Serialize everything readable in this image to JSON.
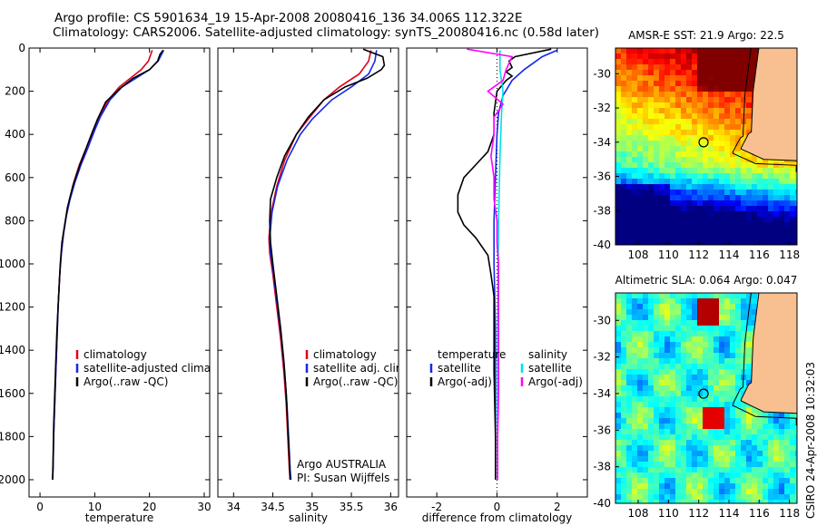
{
  "header": {
    "line1": "Argo profile: CS 5901634_19 15-Apr-2008 20080416_136 34.006S 112.322E",
    "line2": "Climatology: CARS2006. Satellite-adjusted climatology: synTS_20080416.nc (0.58d later)"
  },
  "footer_stamp": "CSIRO 24-Apr-2008 10:32:03",
  "colors": {
    "climatology": "#e0001c",
    "satellite": "#1428e6",
    "argo": "#000000",
    "sal_satellite": "#00e0e8",
    "sal_argo": "#ff00ff",
    "land": "#f8c090",
    "marker": "#000000"
  },
  "chart_data": [
    {
      "type": "line",
      "title": "",
      "xlabel": "temperature",
      "ylabel": "",
      "xlim": [
        -2,
        31
      ],
      "ylim": [
        2080,
        0
      ],
      "y_reversed": true,
      "xticks": [
        0,
        10,
        20,
        30
      ],
      "yticks": [
        0,
        200,
        400,
        600,
        800,
        1000,
        1200,
        1400,
        1600,
        1800,
        2000
      ],
      "legend": {
        "placement": "lower-center",
        "entries": [
          "climatology",
          "satellite-adjusted climatology",
          "Argo(..raw -QC)"
        ]
      },
      "series": [
        {
          "name": "climatology",
          "color": "#e0001c",
          "points": [
            [
              20.5,
              10
            ],
            [
              19.8,
              60
            ],
            [
              18.5,
              100
            ],
            [
              16.5,
              140
            ],
            [
              14.5,
              180
            ],
            [
              12.5,
              240
            ],
            [
              10.8,
              320
            ],
            [
              9.8,
              380
            ],
            [
              8.5,
              460
            ],
            [
              7.2,
              540
            ],
            [
              6.2,
              620
            ],
            [
              5.4,
              700
            ],
            [
              4.8,
              780
            ],
            [
              4.3,
              860
            ],
            [
              3.9,
              950
            ],
            [
              3.6,
              1050
            ],
            [
              3.3,
              1200
            ],
            [
              3.1,
              1350
            ],
            [
              2.9,
              1500
            ],
            [
              2.7,
              1650
            ],
            [
              2.5,
              1800
            ],
            [
              2.4,
              1950
            ],
            [
              2.3,
              2000
            ]
          ]
        },
        {
          "name": "satellite-adjusted climatology",
          "color": "#1428e6",
          "points": [
            [
              22.6,
              10
            ],
            [
              21.6,
              60
            ],
            [
              20.0,
              100
            ],
            [
              17.5,
              140
            ],
            [
              15.0,
              180
            ],
            [
              12.8,
              240
            ],
            [
              11.0,
              320
            ],
            [
              10.0,
              380
            ],
            [
              8.8,
              460
            ],
            [
              7.5,
              540
            ],
            [
              6.4,
              620
            ],
            [
              5.5,
              700
            ],
            [
              4.8,
              780
            ],
            [
              4.3,
              860
            ],
            [
              3.9,
              950
            ],
            [
              3.6,
              1050
            ],
            [
              3.3,
              1200
            ],
            [
              3.1,
              1350
            ],
            [
              2.9,
              1500
            ],
            [
              2.7,
              1650
            ],
            [
              2.5,
              1800
            ],
            [
              2.4,
              1950
            ],
            [
              2.3,
              2000
            ]
          ]
        },
        {
          "name": "Argo(..raw -QC)",
          "color": "#000000",
          "points": [
            [
              22.5,
              10
            ],
            [
              21.9,
              30
            ],
            [
              21.5,
              60
            ],
            [
              20.0,
              100
            ],
            [
              17.0,
              140
            ],
            [
              14.5,
              190
            ],
            [
              12.0,
              250
            ],
            [
              10.5,
              330
            ],
            [
              9.4,
              400
            ],
            [
              8.5,
              460
            ],
            [
              7.3,
              540
            ],
            [
              6.0,
              640
            ],
            [
              5.0,
              740
            ],
            [
              4.5,
              820
            ],
            [
              4.0,
              900
            ],
            [
              3.7,
              1000
            ],
            [
              3.4,
              1150
            ],
            [
              3.1,
              1300
            ],
            [
              2.9,
              1450
            ],
            [
              2.7,
              1600
            ],
            [
              2.5,
              1750
            ],
            [
              2.4,
              1900
            ],
            [
              2.3,
              2000
            ]
          ]
        }
      ]
    },
    {
      "type": "line",
      "title": "",
      "xlabel": "salinity",
      "ylabel": "",
      "xlim": [
        33.8,
        36.1
      ],
      "ylim": [
        2080,
        0
      ],
      "y_reversed": true,
      "xticks": [
        34,
        34.5,
        35,
        35.5,
        36
      ],
      "yticks": [],
      "legend": {
        "placement": "lower-center",
        "entries": [
          "climatology",
          "satellite adj. clim.",
          "Argo(..raw -QC)"
        ]
      },
      "annotation": [
        "Argo AUSTRALIA",
        "PI: Susan Wijffels"
      ],
      "series": [
        {
          "name": "climatology",
          "color": "#e0001c",
          "points": [
            [
              35.75,
              10
            ],
            [
              35.72,
              60
            ],
            [
              35.6,
              120
            ],
            [
              35.35,
              180
            ],
            [
              35.15,
              240
            ],
            [
              34.95,
              330
            ],
            [
              34.8,
              400
            ],
            [
              34.65,
              520
            ],
            [
              34.55,
              640
            ],
            [
              34.48,
              760
            ],
            [
              34.45,
              880
            ],
            [
              34.46,
              950
            ],
            [
              34.5,
              1050
            ],
            [
              34.55,
              1200
            ],
            [
              34.6,
              1350
            ],
            [
              34.64,
              1500
            ],
            [
              34.67,
              1650
            ],
            [
              34.69,
              1800
            ],
            [
              34.71,
              1950
            ],
            [
              34.72,
              2000
            ]
          ]
        },
        {
          "name": "satellite adj. clim.",
          "color": "#1428e6",
          "points": [
            [
              35.82,
              10
            ],
            [
              35.8,
              60
            ],
            [
              35.72,
              120
            ],
            [
              35.5,
              180
            ],
            [
              35.25,
              240
            ],
            [
              35.0,
              330
            ],
            [
              34.85,
              400
            ],
            [
              34.68,
              520
            ],
            [
              34.56,
              640
            ],
            [
              34.49,
              760
            ],
            [
              34.46,
              880
            ],
            [
              34.47,
              950
            ],
            [
              34.51,
              1050
            ],
            [
              34.56,
              1200
            ],
            [
              34.61,
              1350
            ],
            [
              34.65,
              1500
            ],
            [
              34.68,
              1650
            ],
            [
              34.7,
              1800
            ],
            [
              34.72,
              1950
            ],
            [
              34.73,
              2000
            ]
          ]
        },
        {
          "name": "Argo(..raw -QC)",
          "color": "#000000",
          "points": [
            [
              35.65,
              5
            ],
            [
              35.9,
              40
            ],
            [
              35.92,
              80
            ],
            [
              35.88,
              100
            ],
            [
              35.7,
              140
            ],
            [
              35.42,
              180
            ],
            [
              35.15,
              240
            ],
            [
              34.95,
              320
            ],
            [
              34.8,
              400
            ],
            [
              34.65,
              500
            ],
            [
              34.55,
              600
            ],
            [
              34.47,
              700
            ],
            [
              34.46,
              800
            ],
            [
              34.47,
              900
            ],
            [
              34.5,
              1000
            ],
            [
              34.55,
              1150
            ],
            [
              34.6,
              1300
            ],
            [
              34.64,
              1450
            ],
            [
              34.67,
              1600
            ],
            [
              34.69,
              1750
            ],
            [
              34.71,
              1900
            ],
            [
              34.72,
              2000
            ]
          ]
        }
      ]
    },
    {
      "type": "line",
      "title": "",
      "xlabel": "difference from climatology",
      "ylabel": "",
      "xlim": [
        -3,
        3
      ],
      "ylim": [
        2080,
        0
      ],
      "y_reversed": true,
      "xticks": [
        -2,
        0,
        2
      ],
      "yticks": [],
      "legend": {
        "placement": "lower-center",
        "entries": [
          "temperature",
          "satellite",
          "Argo(-adj)",
          "salinity",
          "satellite",
          "Argo(-adj)"
        ]
      },
      "series": [
        {
          "name": "temperature satellite",
          "color": "#1428e6",
          "points": [
            [
              2.0,
              10
            ],
            [
              1.5,
              40
            ],
            [
              1.2,
              70
            ],
            [
              0.9,
              100
            ],
            [
              0.5,
              150
            ],
            [
              0.2,
              220
            ],
            [
              0.05,
              300
            ],
            [
              0.0,
              400
            ],
            [
              -0.05,
              600
            ],
            [
              -0.1,
              800
            ],
            [
              -0.1,
              1000
            ],
            [
              -0.05,
              1300
            ],
            [
              -0.05,
              1600
            ],
            [
              -0.05,
              2000
            ]
          ]
        },
        {
          "name": "temperature Argo(-adj)",
          "color": "#000000",
          "points": [
            [
              1.8,
              5
            ],
            [
              0.6,
              40
            ],
            [
              0.4,
              60
            ],
            [
              0.5,
              90
            ],
            [
              0.3,
              110
            ],
            [
              0.5,
              130
            ],
            [
              0.3,
              150
            ],
            [
              0.0,
              200
            ],
            [
              -0.1,
              300
            ],
            [
              -0.1,
              400
            ],
            [
              -0.3,
              480
            ],
            [
              -0.7,
              540
            ],
            [
              -1.1,
              600
            ],
            [
              -1.3,
              680
            ],
            [
              -1.3,
              760
            ],
            [
              -1.1,
              820
            ],
            [
              -0.7,
              880
            ],
            [
              -0.3,
              960
            ],
            [
              -0.2,
              1050
            ],
            [
              -0.1,
              1150
            ],
            [
              -0.1,
              1300
            ],
            [
              -0.1,
              1500
            ],
            [
              -0.05,
              1800
            ],
            [
              -0.05,
              2000
            ]
          ]
        },
        {
          "name": "salinity satellite",
          "color": "#00e0e8",
          "points": [
            [
              0.1,
              10
            ],
            [
              0.1,
              100
            ],
            [
              0.2,
              200
            ],
            [
              0.15,
              300
            ],
            [
              0.1,
              500
            ],
            [
              0.05,
              800
            ],
            [
              0.03,
              1200
            ],
            [
              0.02,
              1600
            ],
            [
              0.02,
              2000
            ]
          ]
        },
        {
          "name": "salinity Argo(-adj)",
          "color": "#ff00ff",
          "points": [
            [
              -1.0,
              5
            ],
            [
              0.5,
              40
            ],
            [
              0.4,
              70
            ],
            [
              0.3,
              100
            ],
            [
              0.2,
              150
            ],
            [
              -0.3,
              200
            ],
            [
              0.2,
              260
            ],
            [
              -0.1,
              320
            ],
            [
              -0.1,
              400
            ],
            [
              -0.2,
              500
            ],
            [
              -0.1,
              600
            ],
            [
              -0.1,
              700
            ],
            [
              0.0,
              800
            ],
            [
              0.0,
              900
            ],
            [
              0.05,
              1000
            ],
            [
              0.05,
              1200
            ],
            [
              0.05,
              1400
            ],
            [
              0.05,
              1600
            ],
            [
              0.02,
              1800
            ],
            [
              0.02,
              2000
            ]
          ]
        }
      ]
    },
    {
      "type": "heatmap",
      "title": "AMSR-E SST: 21.9 Argo: 22.5",
      "xlim": [
        106.5,
        118.5
      ],
      "ylim": [
        -40,
        -28.5
      ],
      "xticks": [
        108,
        110,
        112,
        114,
        116,
        118
      ],
      "yticks": [
        -30,
        -32,
        -34,
        -36,
        -38,
        -40
      ],
      "marker": {
        "lon": 112.322,
        "lat": -34.006
      }
    },
    {
      "type": "heatmap",
      "title": "Altimetric SLA: 0.064 Argo: 0.047",
      "xlim": [
        106.5,
        118.5
      ],
      "ylim": [
        -40,
        -28.5
      ],
      "xticks": [
        108,
        110,
        112,
        114,
        116,
        118
      ],
      "yticks": [
        -30,
        -32,
        -34,
        -36,
        -38,
        -40
      ],
      "marker": {
        "lon": 112.322,
        "lat": -34.006
      }
    }
  ]
}
